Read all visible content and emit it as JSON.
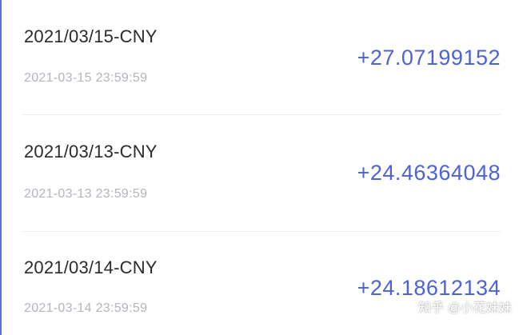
{
  "records": [
    {
      "title": "2021/03/15-CNY",
      "timestamp": "2021-03-15 23:59:59",
      "amount": "+27.07199152"
    },
    {
      "title": "2021/03/13-CNY",
      "timestamp": "2021-03-13 23:59:59",
      "amount": "+24.46364048"
    },
    {
      "title": "2021/03/14-CNY",
      "timestamp": "2021-03-14 23:59:59",
      "amount": "+24.18612134"
    }
  ],
  "watermark": "知乎 @小花妹妹",
  "colors": {
    "amount": "#4c63d8",
    "title": "#2b2b2b",
    "timestamp": "#b3b6bd",
    "divider": "#eceef2",
    "accent_edge": "#5b6fd6"
  }
}
